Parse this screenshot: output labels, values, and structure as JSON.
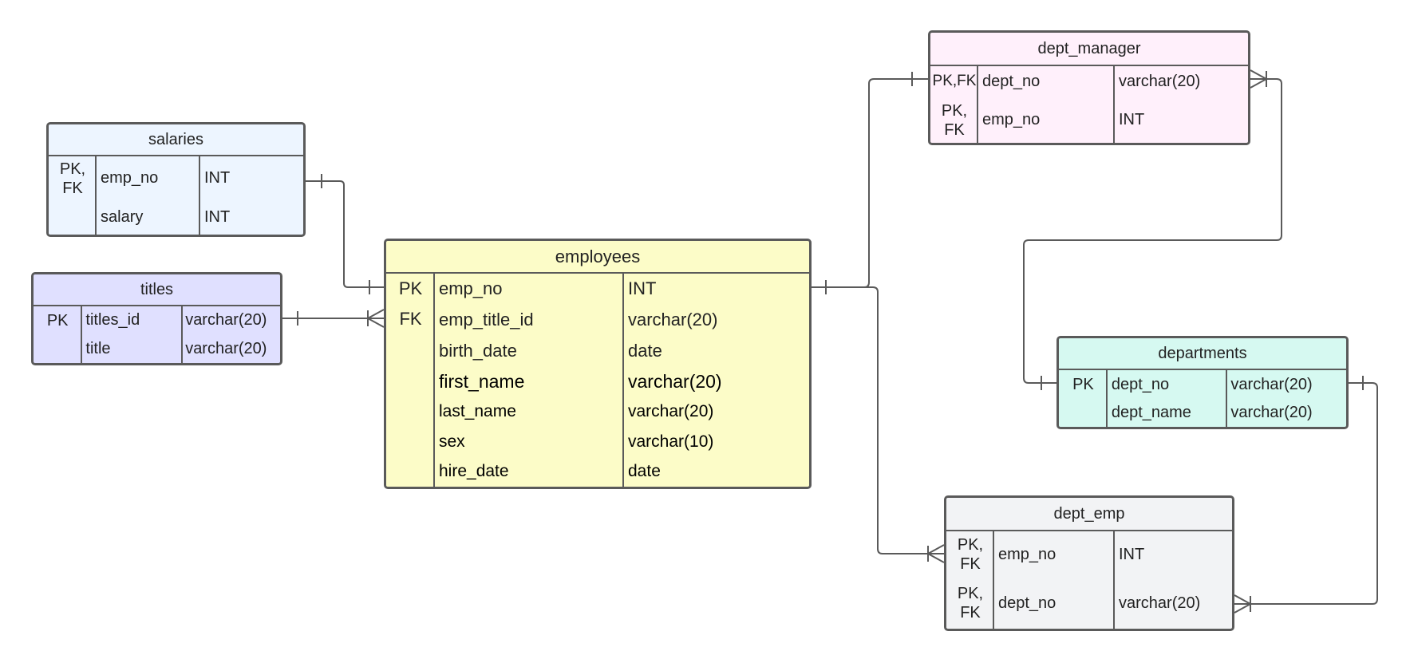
{
  "colors": {
    "stroke": "#5a5a5a",
    "salaries": "#edf5ff",
    "titles": "#e0e0ff",
    "employees": "#fcfcc8",
    "dept_manager": "#fff0fb",
    "departments": "#d6f9f1",
    "dept_emp": "#f2f3f5"
  },
  "tables": {
    "salaries": {
      "title": "salaries",
      "rows": [
        {
          "key": "PK,\nFK",
          "name": "emp_no",
          "type": "INT"
        },
        {
          "key": "",
          "name": "salary",
          "type": "INT"
        }
      ]
    },
    "titles": {
      "title": "titles",
      "rows": [
        {
          "key": "PK",
          "name": "titles_id",
          "type": "varchar(20)"
        },
        {
          "key": "",
          "name": "title",
          "type": "varchar(20)"
        }
      ]
    },
    "employees": {
      "title": "employees",
      "rows": [
        {
          "key": "PK",
          "name": "emp_no",
          "type": "INT"
        },
        {
          "key": "FK",
          "name": "emp_title_id",
          "type": "varchar(20)"
        },
        {
          "key": "",
          "name": "birth_date",
          "type": "date"
        },
        {
          "key": "",
          "name": "first_name",
          "type": "varchar(20)"
        },
        {
          "key": "",
          "name": "last_name",
          "type": "varchar(20)"
        },
        {
          "key": "",
          "name": "sex",
          "type": "varchar(10)"
        },
        {
          "key": "",
          "name": "hire_date",
          "type": "date"
        }
      ]
    },
    "dept_manager": {
      "title": "dept_manager",
      "rows": [
        {
          "key": "PK,FK",
          "name": "dept_no",
          "type": "varchar(20)"
        },
        {
          "key": "PK,\nFK",
          "name": "emp_no",
          "type": "INT"
        }
      ]
    },
    "departments": {
      "title": "departments",
      "rows": [
        {
          "key": "PK",
          "name": "dept_no",
          "type": "varchar(20)"
        },
        {
          "key": "",
          "name": "dept_name",
          "type": "varchar(20)"
        }
      ]
    },
    "dept_emp": {
      "title": "dept_emp",
      "rows": [
        {
          "key": "PK,\nFK",
          "name": "emp_no",
          "type": "INT"
        },
        {
          "key": "PK,\nFK",
          "name": "dept_no",
          "type": "varchar(20)"
        }
      ]
    }
  }
}
